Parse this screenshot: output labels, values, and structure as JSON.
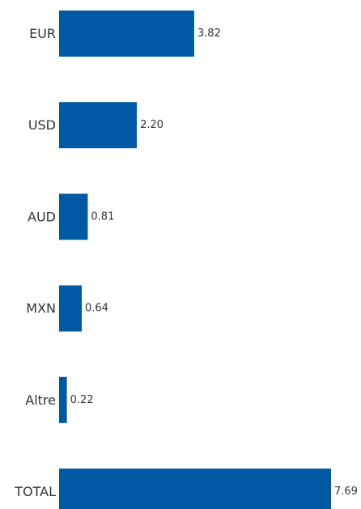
{
  "chart_data": {
    "type": "bar",
    "orientation": "horizontal",
    "categories": [
      "EUR",
      "USD",
      "AUD",
      "MXN",
      "Altre",
      "TOTAL"
    ],
    "series": [
      {
        "values": [
          3.82,
          2.2,
          0.81,
          0.64,
          0.22,
          7.69
        ]
      }
    ],
    "value_labels": [
      "3.82",
      "2.20",
      "0.81",
      "0.64",
      "0.22",
      "7.69"
    ],
    "xlim": [
      0,
      7.69
    ],
    "grid": false,
    "legend": "none",
    "colors": {
      "bar": "#005aa3",
      "text": "#333333"
    }
  }
}
